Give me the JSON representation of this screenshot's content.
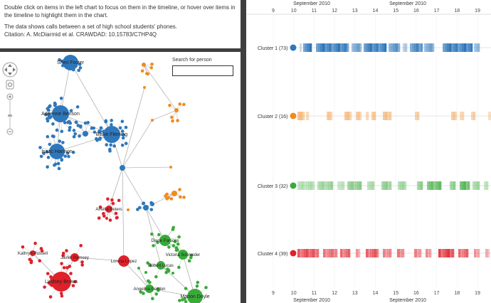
{
  "info": {
    "instructions": "Double click on items in the left chart to focus on them in the timeline, or hover over items in the timeline to highlight them in the chart.",
    "description": "The data shows calls between a set of high school students' phones.",
    "citation": "Citation: A. McDiarmid et al. CRAWDAD: 10.15783/C7HP4Q"
  },
  "search": {
    "label": "Search for person",
    "value": "",
    "placeholder": ""
  },
  "icons": {
    "pan": "pan-arrows-icon",
    "zoom_in": "zoom-in-icon",
    "zoom_out": "zoom-out-icon",
    "fit": "fit-icon"
  },
  "colors": {
    "cluster1": "#2e77bb",
    "cluster2": "#f08a22",
    "cluster3": "#3aaa3a",
    "cluster4": "#e0202a"
  },
  "graph": {
    "people": [
      {
        "name": "Sheri Foster"
      },
      {
        "name": "Adrienne Benson"
      },
      {
        "name": "Blake Fleming"
      },
      {
        "name": "Isaac Harmon"
      },
      {
        "name": "Amelia Peters"
      },
      {
        "name": "Diane Parsons"
      },
      {
        "name": "Victoria Schneider"
      },
      {
        "name": "Kathryn Russell"
      },
      {
        "name": "Javier Ramsey"
      },
      {
        "name": "Lorena Lopez"
      },
      {
        "name": "Robert Lucas"
      },
      {
        "name": "Lindsey Brown"
      },
      {
        "name": "Angelina Gordon"
      },
      {
        "name": "Marion Doyle"
      }
    ]
  },
  "timeline": {
    "top_ticks": [
      "9",
      "10",
      "11",
      "12",
      "13",
      "14",
      "15",
      "16",
      "17",
      "18",
      "19"
    ],
    "bottom_ticks": [
      "9",
      "10",
      "11",
      "12",
      "13",
      "14",
      "15",
      "16",
      "17",
      "18",
      "19"
    ],
    "month_labels": [
      "September 2010",
      "September 2010"
    ],
    "clusters": [
      {
        "label": "Cluster 1 (73)"
      },
      {
        "label": "Cluster 2 (16)"
      },
      {
        "label": "Cluster 3 (32)"
      },
      {
        "label": "Cluster 4 (39)"
      }
    ]
  }
}
